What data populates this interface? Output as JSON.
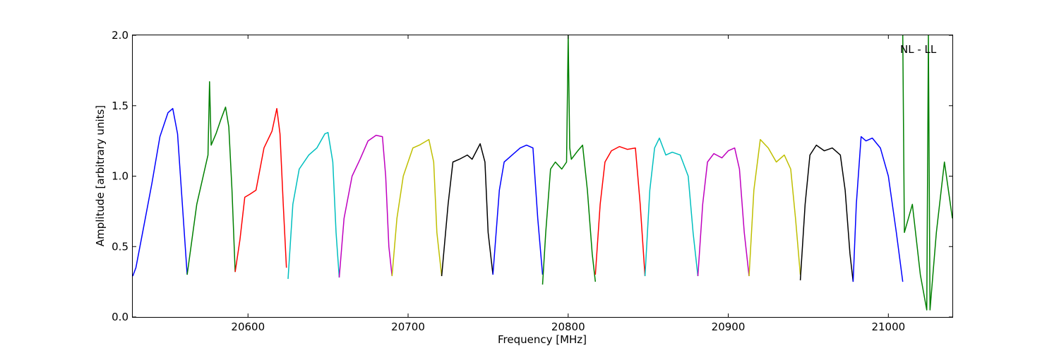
{
  "chart_data": {
    "type": "line",
    "title": "",
    "annotation": "NL - LL",
    "xlabel": "Frequency [MHz]",
    "ylabel": "Amplitude [arbitrary units]",
    "xlim": [
      20528,
      21040
    ],
    "ylim": [
      0.0,
      2.0
    ],
    "x_ticks": [
      20600,
      20700,
      20800,
      20900,
      21000
    ],
    "x_tick_labels": [
      "20600",
      "20700",
      "20800",
      "20900",
      "21000"
    ],
    "y_ticks": [
      0.0,
      0.5,
      1.0,
      1.5,
      2.0
    ],
    "y_tick_labels": [
      "0.0",
      "0.5",
      "1.0",
      "1.5",
      "2.0"
    ],
    "grid": false,
    "legend": "none",
    "series": [
      {
        "color": "#0000ff",
        "x": [
          20528,
          20530,
          20535,
          20540,
          20545,
          20550,
          20553,
          20556,
          20559,
          20562
        ],
        "y": [
          0.29,
          0.35,
          0.65,
          0.95,
          1.28,
          1.45,
          1.48,
          1.3,
          0.8,
          0.3
        ]
      },
      {
        "color": "#008000",
        "x": [
          20562,
          20565,
          20568,
          20572,
          20575,
          20576,
          20577,
          20580,
          20583,
          20586,
          20588,
          20590,
          20592
        ],
        "y": [
          0.3,
          0.55,
          0.8,
          1.0,
          1.15,
          1.67,
          1.22,
          1.3,
          1.4,
          1.49,
          1.35,
          0.9,
          0.32
        ]
      },
      {
        "color": "#ff0000",
        "x": [
          20592,
          20595,
          20598,
          20601,
          20605,
          20610,
          20615,
          20618,
          20620,
          20622,
          20624
        ],
        "y": [
          0.32,
          0.55,
          0.85,
          0.87,
          0.9,
          1.2,
          1.32,
          1.48,
          1.3,
          0.8,
          0.35
        ]
      },
      {
        "color": "#00bfbf",
        "x": [
          20625,
          20628,
          20632,
          20638,
          20643,
          20648,
          20650,
          20653,
          20655,
          20657
        ],
        "y": [
          0.27,
          0.8,
          1.05,
          1.15,
          1.2,
          1.3,
          1.31,
          1.1,
          0.6,
          0.28
        ]
      },
      {
        "color": "#bf00bf",
        "x": [
          20657,
          20660,
          20665,
          20670,
          20675,
          20680,
          20684,
          20686,
          20688,
          20690
        ],
        "y": [
          0.28,
          0.7,
          1.0,
          1.12,
          1.25,
          1.29,
          1.28,
          1.0,
          0.5,
          0.29
        ]
      },
      {
        "color": "#bfbf00",
        "x": [
          20690,
          20693,
          20697,
          20700,
          20703,
          20707,
          20710,
          20713,
          20716,
          20718,
          20721
        ],
        "y": [
          0.29,
          0.7,
          1.0,
          1.1,
          1.2,
          1.22,
          1.24,
          1.26,
          1.1,
          0.6,
          0.29
        ]
      },
      {
        "color": "#000000",
        "x": [
          20721,
          20725,
          20728,
          20732,
          20737,
          20740,
          20745,
          20748,
          20750,
          20753
        ],
        "y": [
          0.29,
          0.8,
          1.1,
          1.12,
          1.15,
          1.12,
          1.23,
          1.1,
          0.6,
          0.3
        ]
      },
      {
        "color": "#0000ff",
        "x": [
          20753,
          20757,
          20760,
          20765,
          20770,
          20774,
          20778,
          20781,
          20784
        ],
        "y": [
          0.3,
          0.9,
          1.1,
          1.15,
          1.2,
          1.22,
          1.2,
          0.7,
          0.3
        ]
      },
      {
        "color": "#008000",
        "x": [
          20784,
          20786,
          20789,
          20792,
          20796,
          20799,
          20800,
          20801,
          20802,
          20806,
          20809,
          20812,
          20815,
          20817
        ],
        "y": [
          0.23,
          0.6,
          1.05,
          1.1,
          1.05,
          1.1,
          2.0,
          1.2,
          1.12,
          1.18,
          1.22,
          0.9,
          0.45,
          0.25
        ]
      },
      {
        "color": "#ff0000",
        "x": [
          20817,
          20820,
          20823,
          20827,
          20832,
          20837,
          20842,
          20845,
          20848
        ],
        "y": [
          0.3,
          0.8,
          1.1,
          1.18,
          1.21,
          1.19,
          1.2,
          0.8,
          0.29
        ]
      },
      {
        "color": "#00bfbf",
        "x": [
          20848,
          20851,
          20854,
          20857,
          20861,
          20865,
          20870,
          20875,
          20878,
          20881
        ],
        "y": [
          0.29,
          0.9,
          1.2,
          1.27,
          1.15,
          1.17,
          1.15,
          1.0,
          0.6,
          0.29
        ]
      },
      {
        "color": "#bf00bf",
        "x": [
          20881,
          20884,
          20887,
          20891,
          20896,
          20900,
          20904,
          20907,
          20910,
          20913
        ],
        "y": [
          0.29,
          0.8,
          1.1,
          1.16,
          1.13,
          1.18,
          1.2,
          1.05,
          0.6,
          0.29
        ]
      },
      {
        "color": "#bfbf00",
        "x": [
          20913,
          20916,
          20920,
          20925,
          20930,
          20935,
          20939,
          20942,
          20945
        ],
        "y": [
          0.29,
          0.9,
          1.26,
          1.2,
          1.1,
          1.15,
          1.05,
          0.7,
          0.3
        ]
      },
      {
        "color": "#000000",
        "x": [
          20945,
          20948,
          20951,
          20955,
          20960,
          20965,
          20970,
          20973,
          20976,
          20978
        ],
        "y": [
          0.26,
          0.8,
          1.15,
          1.22,
          1.18,
          1.2,
          1.15,
          0.9,
          0.45,
          0.25
        ]
      },
      {
        "color": "#0000ff",
        "x": [
          20978,
          20980,
          20983,
          20986,
          20990,
          20995,
          21000,
          21005,
          21009
        ],
        "y": [
          0.25,
          0.8,
          1.28,
          1.25,
          1.27,
          1.2,
          1.0,
          0.6,
          0.25
        ]
      },
      {
        "color": "#008000",
        "x": [
          21009,
          21010,
          21015,
          21020,
          21024,
          21025,
          21026,
          21030,
          21035,
          21040
        ],
        "y": [
          2.0,
          0.6,
          0.8,
          0.3,
          0.05,
          2.0,
          0.05,
          0.6,
          1.1,
          0.7
        ]
      }
    ]
  }
}
